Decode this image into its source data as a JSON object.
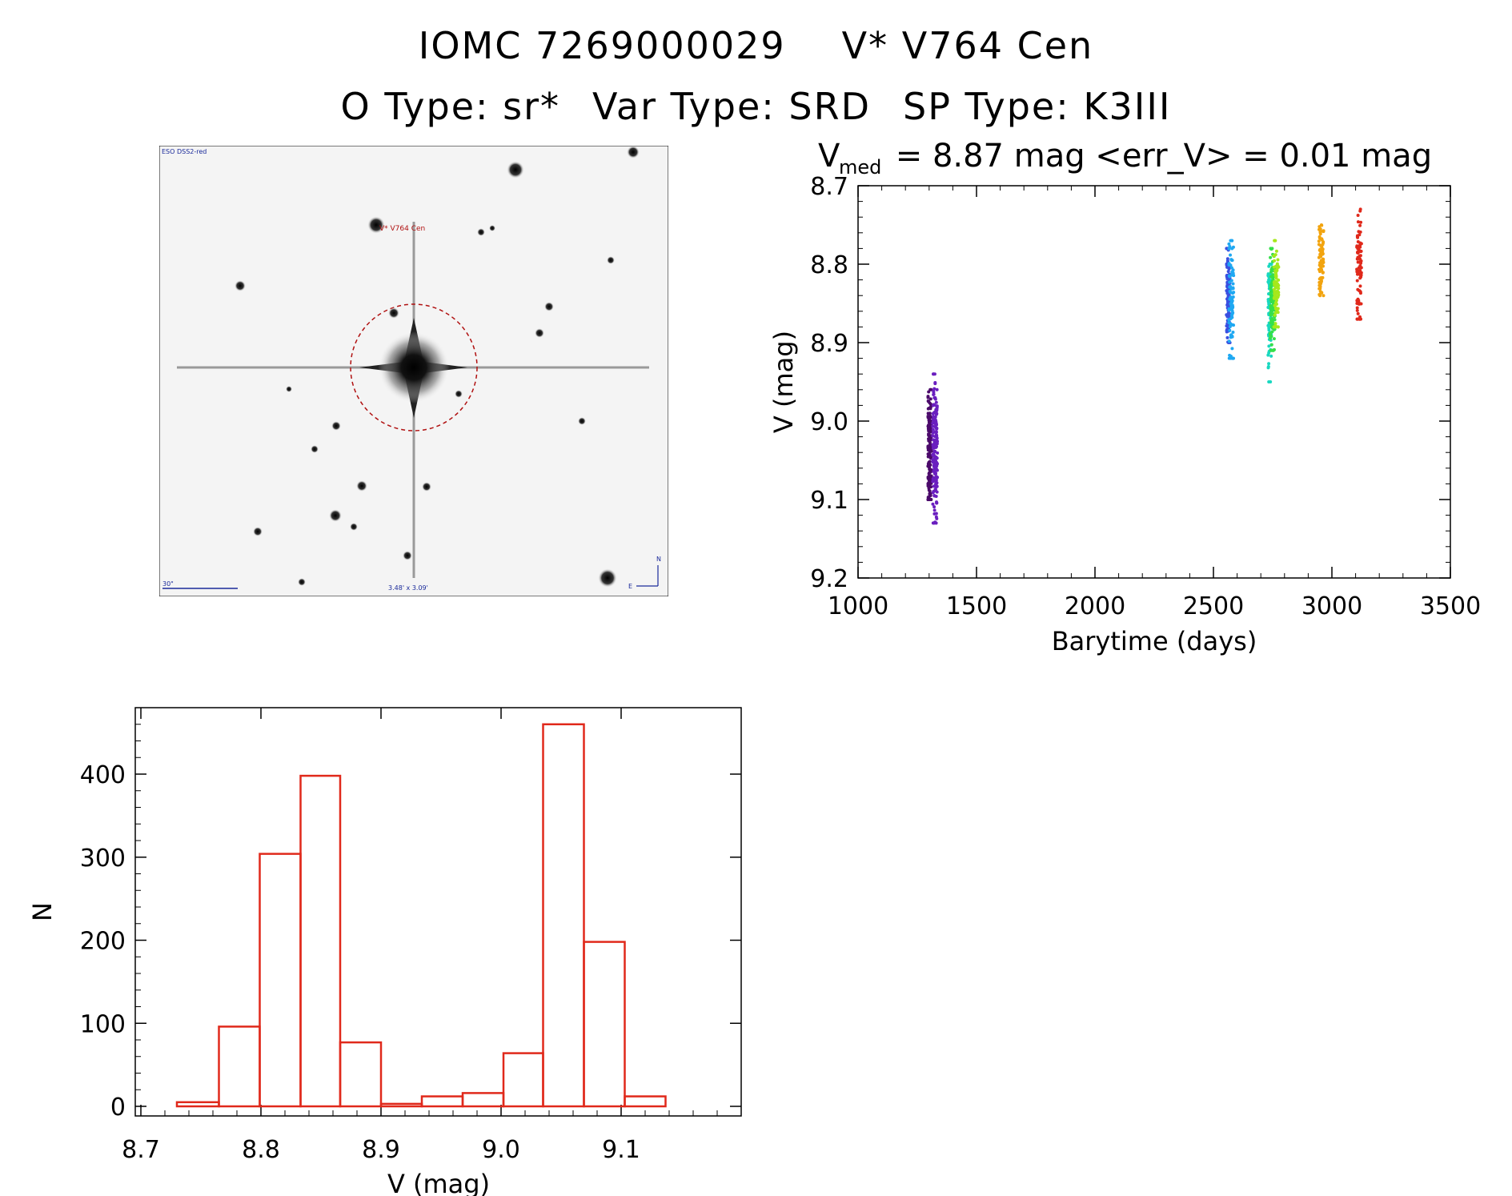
{
  "header": {
    "ids": "IOMC 7269000029",
    "name": "V* V764 Cen",
    "otype": "O Type: sr*",
    "vartype": "Var Type: SRD",
    "sptype": "SP Type: K3III"
  },
  "finder": {
    "survey_label": "ESO DSS2-red",
    "target_label": "V* V764 Cen",
    "scale_label": "30\"",
    "size_label": "3.48' x 3.09'",
    "north": "N",
    "east": "E"
  },
  "chart_data": [
    {
      "type": "scatter",
      "title_prefix": "V",
      "title_sub": "med",
      "title_rest": " = 8.87 mag <err_V> = 0.01 mag",
      "xlabel": "Barytime (days)",
      "ylabel": "V (mag)",
      "xlim": [
        1000,
        3500
      ],
      "ylim": [
        9.2,
        8.7
      ],
      "y_inverted": true,
      "xticks": [
        "1000",
        "1500",
        "2000",
        "2500",
        "3000",
        "3500"
      ],
      "yticks": [
        "8.7",
        "8.8",
        "8.9",
        "9.0",
        "9.1",
        "9.2"
      ],
      "series": [
        {
          "color": "#4b0a6b",
          "x_range": [
            1295,
            1310
          ],
          "y_range": [
            9.1,
            8.96
          ],
          "y_center": 9.05,
          "n": 160
        },
        {
          "color": "#6a1fbf",
          "x_range": [
            1315,
            1335
          ],
          "y_range": [
            9.13,
            8.94
          ],
          "y_center": 9.04,
          "n": 180
        },
        {
          "color": "#3a4fe0",
          "x_range": [
            2555,
            2570
          ],
          "y_range": [
            8.9,
            8.78
          ],
          "y_center": 8.84,
          "n": 100
        },
        {
          "color": "#1fa8f2",
          "x_range": [
            2565,
            2585
          ],
          "y_range": [
            8.92,
            8.77
          ],
          "y_center": 8.85,
          "n": 90
        },
        {
          "color": "#19d8c0",
          "x_range": [
            2730,
            2745
          ],
          "y_range": [
            8.95,
            8.8
          ],
          "y_center": 8.86,
          "n": 90
        },
        {
          "color": "#35e04a",
          "x_range": [
            2740,
            2760
          ],
          "y_range": [
            8.91,
            8.78
          ],
          "y_center": 8.85,
          "n": 110
        },
        {
          "color": "#a6e81b",
          "x_range": [
            2755,
            2775
          ],
          "y_range": [
            8.88,
            8.77
          ],
          "y_center": 8.83,
          "n": 90
        },
        {
          "color": "#f2a40f",
          "x_range": [
            2945,
            2965
          ],
          "y_range": [
            8.84,
            8.75
          ],
          "y_center": 8.8,
          "n": 80
        },
        {
          "color": "#e0291b",
          "x_range": [
            3105,
            3125
          ],
          "y_range": [
            8.87,
            8.73
          ],
          "y_center": 8.81,
          "n": 90
        }
      ]
    },
    {
      "type": "bar",
      "xlabel": "V (mag)",
      "ylabel": "N",
      "xlim": [
        8.7,
        9.2
      ],
      "ylim": [
        0,
        480
      ],
      "xticks": [
        "8.7",
        "8.8",
        "8.9",
        "9.0",
        "9.1"
      ],
      "yticks": [
        "0",
        "100",
        "200",
        "300",
        "400"
      ],
      "color": "#e0291b",
      "bin_edges": [
        8.73,
        8.765,
        8.799,
        8.833,
        8.866,
        8.9,
        8.934,
        8.968,
        9.002,
        9.035,
        9.069,
        9.103,
        9.137
      ],
      "values": [
        5,
        96,
        304,
        398,
        77,
        3,
        12,
        16,
        64,
        460,
        198,
        12
      ]
    }
  ]
}
